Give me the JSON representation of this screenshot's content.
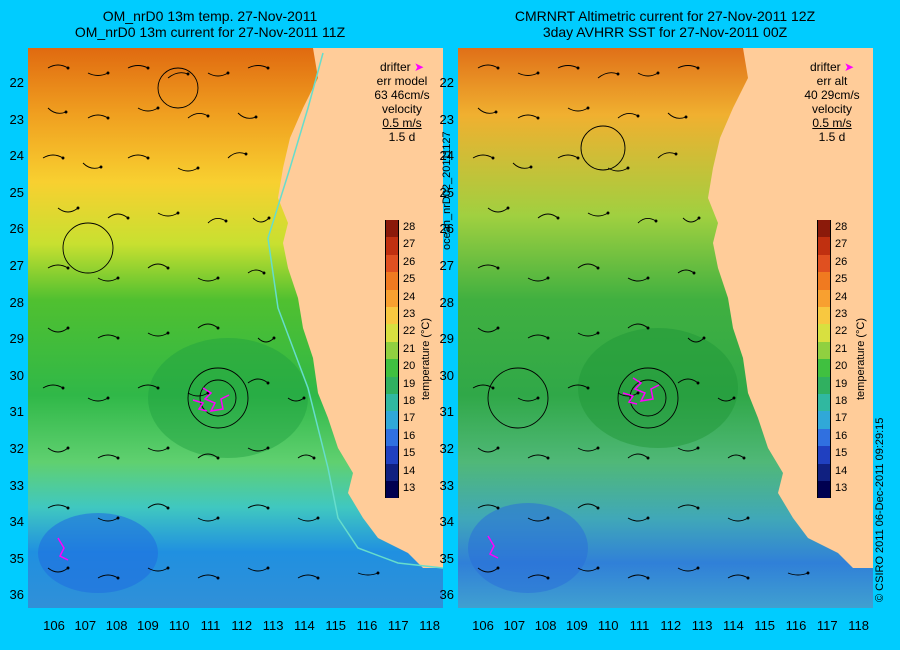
{
  "left_panel": {
    "title_line1": "OM_nrD0 13m temp. 27-Nov-2011",
    "title_line2": "OM_nrD0 13m current for 27-Nov-2011 11Z",
    "legend": {
      "drifter_label": "drifter",
      "err_label": "err model",
      "err_value": "63 46cm/s",
      "velocity_label": "velocity",
      "velocity_value": "0.5 m/s",
      "duration": "1.5 d"
    }
  },
  "right_panel": {
    "title_line1": "CMRNRT Altimetric current for 27-Nov-2011 12Z",
    "title_line2": "3day AVHRR SST for 27-Nov-2011 00Z",
    "legend": {
      "drifter_label": "drifter",
      "err_label": "err alt",
      "err_value": "40 29cm/s",
      "velocity_label": "velocity",
      "velocity_value": "0.5 m/s",
      "duration": "1.5 d"
    }
  },
  "axes": {
    "lat_ticks": [
      "22",
      "23",
      "24",
      "25",
      "26",
      "27",
      "28",
      "29",
      "30",
      "31",
      "32",
      "33",
      "34",
      "35",
      "36"
    ],
    "lon_ticks": [
      "106",
      "107",
      "108",
      "109",
      "110",
      "111",
      "112",
      "113",
      "114",
      "115",
      "116",
      "117",
      "118"
    ]
  },
  "colorbar": {
    "title": "temperature (°C)",
    "ticks": [
      "28",
      "27",
      "26",
      "25",
      "24",
      "23",
      "22",
      "21",
      "20",
      "19",
      "18",
      "17",
      "16",
      "15",
      "14",
      "13"
    ]
  },
  "side_text": {
    "file_label": "ocean_nrD02_20111127",
    "credit": "© CSIRO 2011   06-Dec-2011 09:29:15"
  },
  "colors": {
    "background": "#00ccff",
    "land": "#ffcc99",
    "drifter": "#ff00ff",
    "coast_current": "#66ddcc"
  }
}
